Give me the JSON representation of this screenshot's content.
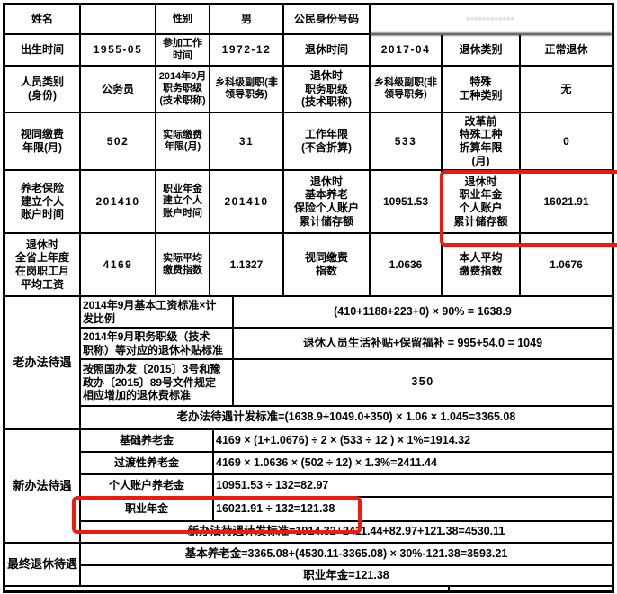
{
  "colors": {
    "highlight_red": "#ed1b0c",
    "border_black": "#000000"
  },
  "info": {
    "r1": {
      "name_label": "姓名",
      "name_value": "",
      "gender_label": "性别",
      "gender_value": "男",
      "id_label": "公民身份号码",
      "id_value": "············"
    },
    "r2": {
      "birth_label": "出生时间",
      "birth_value": "1955-05",
      "workstart_label": "参加工作\n时间",
      "workstart_value": "1972-12",
      "retire_label": "退休时间",
      "retire_value": "2017-04",
      "type_label": "退休类别",
      "type_value": "正常退休"
    },
    "r3": {
      "category_label": "人员类别\n(身份)",
      "category_value": "公务员",
      "rank2014_label": "2014年9月\n职务职级\n(技术职称)",
      "rank2014_value": "乡科级副职(非\n领导职务)",
      "rankretire_label": "退休时\n职务职级\n(技术职称)",
      "rankretire_value": "乡科级副职(非\n领导职务)",
      "special_label": "特殊\n工种类别",
      "special_value": "无"
    },
    "r4": {
      "deemed_label": "视同缴费\n年限(月)",
      "deemed_value": "502",
      "actual_label": "实际缴费\n年限(月)",
      "actual_value": "31",
      "workyears_label": "工作年限\n(不含折算)",
      "workyears_value": "533",
      "converted_label": "改革前\n特殊工种\n折算年限\n(月)",
      "converted_value": "0"
    },
    "r5": {
      "pensionstart_label": "养老保险\n建立个人\n账户时间",
      "pensionstart_value": "201410",
      "annuitystart_label": "职业年金\n建立个人\n账户时间",
      "annuitystart_value": "201410",
      "pensionbalance_label": "退休时\n基本养老\n保险个人账户\n累计储存额",
      "pensionbalance_value": "10951.53",
      "annuitybalance_label": "退休时\n职业年金\n个人账户\n累计储存额",
      "annuitybalance_value": "16021.91"
    },
    "r6": {
      "avgwage_label": "退休时\n全省上年度\n在岗职工月\n平均工资",
      "avgwage_value": "4169",
      "actualindex_label": "实际平均\n缴费指数",
      "actualindex_value": "1.1327",
      "deemedindex_label": "视同缴费\n指数",
      "deemedindex_value": "1.0636",
      "personalindex_label": "本人平均\n缴费指数",
      "personalindex_value": "1.0676"
    }
  },
  "old_method": {
    "header": "老办法待遇",
    "row1_label": "2014年9月基本工资标准×计\n发比例",
    "row1_formula": "(410+1188+223+0) × 90% = 1638.9",
    "row2_label": "2014年9月职务职级（技术\n职称）等对应的退休补贴标准",
    "row2_formula": "退休人员生活补贴+保留福补 = 995+54.0 = 1049",
    "row3_label": "按照国办发〔2015〕3号和豫\n政办〔2015〕89号文件规定\n相应增加的退休费标准",
    "row3_formula": "350",
    "total": "老办法待遇计发标准=(1638.9+1049.0+350) × 1.06 × 1.045=3365.08"
  },
  "new_method": {
    "header": "新办法待遇",
    "row1_label": "基础养老金",
    "row1_formula": "4169 × (1+1.0676) ÷ 2 × (533 ÷ 12 ) × 1%=1914.32",
    "row2_label": "过渡性养老金",
    "row2_formula": "4169 × 1.0636 × (502 ÷ 12) × 1.3%=2411.44",
    "row3_label": "个人账户养老金",
    "row3_formula": "10951.53 ÷ 132=82.97",
    "row4_label": "职业年金",
    "row4_formula": "16021.91 ÷ 132=121.38",
    "total": "新办法待遇计发标准=1914.32+2411.44+82.97+121.38=4530.11"
  },
  "final": {
    "header": "最终退休待遇",
    "row1": "基本养老金=3365.08+(4530.11-3365.08) × 30%-121.38=3593.21",
    "row2": "职业年金=121.38"
  }
}
